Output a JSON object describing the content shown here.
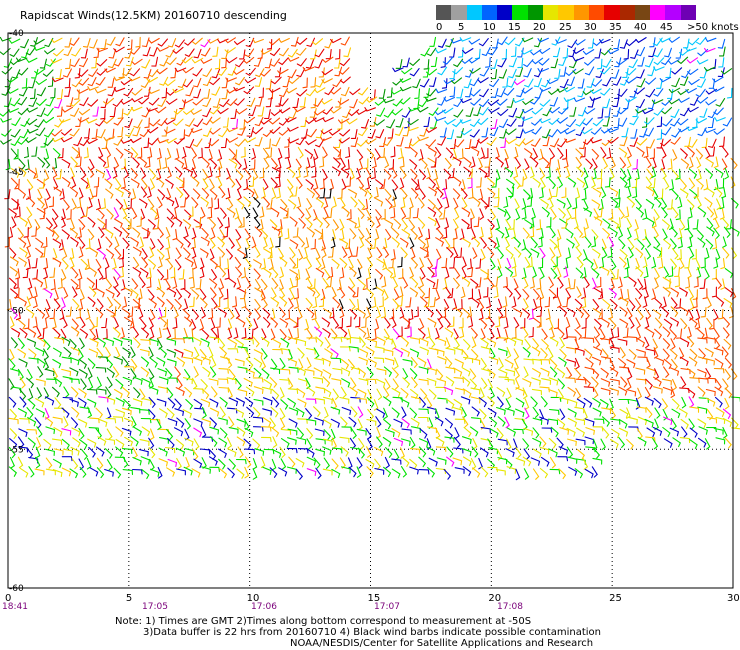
{
  "title": "Rapidscat Winds(12.5KM) 20160710 descending",
  "legend": {
    "bins": [
      {
        "color": "#555555"
      },
      {
        "color": "#a0a0a0"
      },
      {
        "color": "#00c8ff"
      },
      {
        "color": "#0064ff"
      },
      {
        "color": "#0000c8"
      },
      {
        "color": "#00e100"
      },
      {
        "color": "#009600"
      },
      {
        "color": "#e6e600"
      },
      {
        "color": "#ffc800"
      },
      {
        "color": "#ff9600"
      },
      {
        "color": "#ff4b00"
      },
      {
        "color": "#e60000"
      },
      {
        "color": "#aa2800"
      },
      {
        "color": "#784614"
      },
      {
        "color": "#ff00ff"
      },
      {
        "color": "#b400ff"
      },
      {
        "color": "#6e00b4"
      }
    ],
    "labels": [
      "0",
      "5",
      "10",
      "15",
      "20",
      "25",
      "30",
      "35",
      "40",
      "45",
      ">50 knots"
    ]
  },
  "axes": {
    "lat_labels": [
      "-40",
      "-45",
      "-50",
      "-55",
      "-60"
    ],
    "lon_labels": [
      "0",
      "5",
      "10",
      "15",
      "20",
      "25",
      "30"
    ],
    "time_labels": [
      "18:41",
      "17:05",
      "17:06",
      "17:07",
      "17:08"
    ]
  },
  "notes": {
    "line1": "Note: 1) Times are GMT 2)Times along bottom correspond to measurement at -50S",
    "line2": "3)Data buffer is 22 hrs from 20160710 4) Black wind barbs indicate possible contamination",
    "line3": "NOAA/NESDIS/Center for Satellite Applications and Research"
  }
}
